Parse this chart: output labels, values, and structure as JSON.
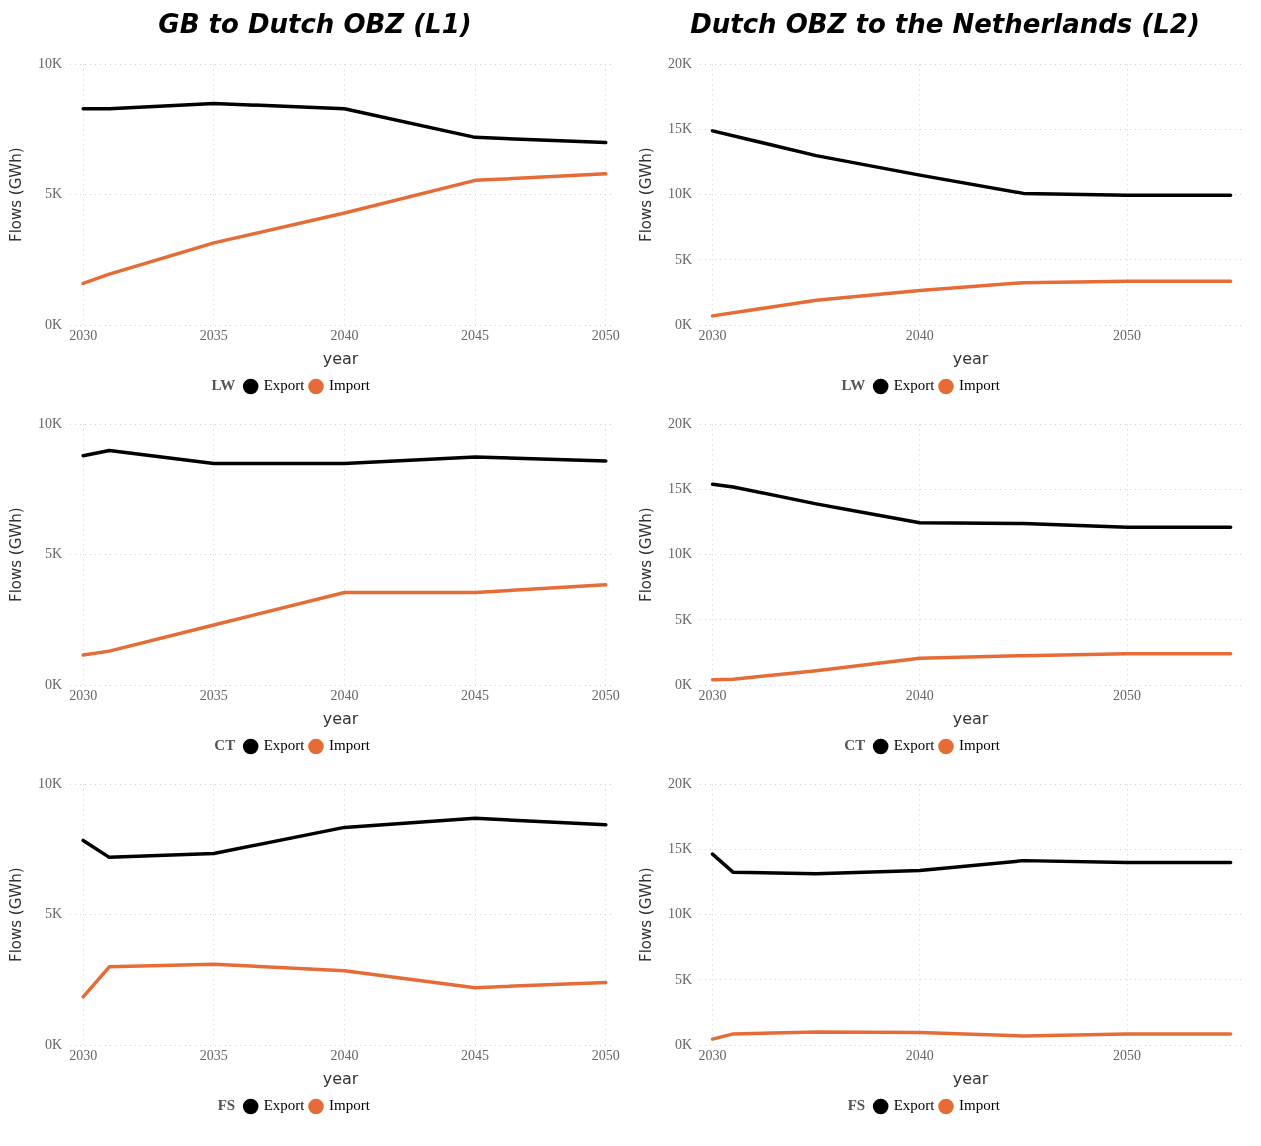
{
  "chart_data": [
    {
      "type": "line",
      "title": "GB to Dutch OBZ (L1)",
      "xlabel": "year",
      "ylabel": "Flows (GWh)",
      "legend_title": "LW",
      "legend": "bottom",
      "grid": true,
      "marker": "none",
      "line_style": "solid",
      "xlim": [
        2029.5,
        2050.2
      ],
      "xticks": [
        2030,
        2035,
        2040,
        2045,
        2050
      ],
      "ylim": [
        0,
        10000
      ],
      "yticks": [
        {
          "value": 0,
          "label": "0K"
        },
        {
          "value": 5000,
          "label": "5K"
        },
        {
          "value": 10000,
          "label": "10K"
        }
      ],
      "series": [
        {
          "name": "Export",
          "color": "#000000",
          "x": [
            2030,
            2031,
            2035,
            2040,
            2045,
            2050
          ],
          "values": [
            8300,
            8300,
            8500,
            8300,
            7200,
            7000
          ]
        },
        {
          "name": "Import",
          "color": "#e66c37",
          "x": [
            2030,
            2031,
            2035,
            2040,
            2045,
            2050
          ],
          "values": [
            1600,
            1950,
            3150,
            4300,
            5550,
            5800
          ]
        }
      ]
    },
    {
      "type": "line",
      "title": "Dutch OBZ to the Netherlands (L2)",
      "xlabel": "year",
      "ylabel": "Flows (GWh)",
      "legend_title": "LW",
      "legend": "bottom",
      "grid": true,
      "marker": "none",
      "line_style": "solid",
      "xlim": [
        2029.4,
        2055.5
      ],
      "xticks": [
        2030,
        2040,
        2050
      ],
      "ylim": [
        0,
        20000
      ],
      "yticks": [
        {
          "value": 0,
          "label": "0K"
        },
        {
          "value": 5000,
          "label": "5K"
        },
        {
          "value": 10000,
          "label": "10K"
        },
        {
          "value": 15000,
          "label": "15K"
        },
        {
          "value": 20000,
          "label": "20K"
        }
      ],
      "series": [
        {
          "name": "Export",
          "color": "#000000",
          "x": [
            2030,
            2035,
            2040,
            2045,
            2050,
            2055
          ],
          "values": [
            14900,
            13000,
            11500,
            10100,
            9950,
            9950
          ]
        },
        {
          "name": "Import",
          "color": "#e66c37",
          "x": [
            2030,
            2035,
            2040,
            2045,
            2050,
            2055
          ],
          "values": [
            700,
            1900,
            2650,
            3250,
            3350,
            3350
          ]
        }
      ]
    },
    {
      "type": "line",
      "xlabel": "year",
      "ylabel": "Flows (GWh)",
      "legend_title": "CT",
      "legend": "bottom",
      "grid": true,
      "marker": "none",
      "line_style": "solid",
      "xlim": [
        2029.5,
        2050.2
      ],
      "xticks": [
        2030,
        2035,
        2040,
        2045,
        2050
      ],
      "ylim": [
        0,
        10000
      ],
      "yticks": [
        {
          "value": 0,
          "label": "0K"
        },
        {
          "value": 5000,
          "label": "5K"
        },
        {
          "value": 10000,
          "label": "10K"
        }
      ],
      "series": [
        {
          "name": "Export",
          "color": "#000000",
          "x": [
            2030,
            2031,
            2035,
            2040,
            2045,
            2050
          ],
          "values": [
            8800,
            9000,
            8500,
            8500,
            8750,
            8600
          ]
        },
        {
          "name": "Import",
          "color": "#e66c37",
          "x": [
            2030,
            2031,
            2035,
            2040,
            2045,
            2050
          ],
          "values": [
            1150,
            1300,
            2300,
            3550,
            3550,
            3850
          ]
        }
      ]
    },
    {
      "type": "line",
      "xlabel": "year",
      "ylabel": "Flows (GWh)",
      "legend_title": "CT",
      "legend": "bottom",
      "grid": true,
      "marker": "none",
      "line_style": "solid",
      "xlim": [
        2029.4,
        2055.5
      ],
      "xticks": [
        2030,
        2040,
        2050
      ],
      "ylim": [
        0,
        20000
      ],
      "yticks": [
        {
          "value": 0,
          "label": "0K"
        },
        {
          "value": 5000,
          "label": "5K"
        },
        {
          "value": 10000,
          "label": "10K"
        },
        {
          "value": 15000,
          "label": "15K"
        },
        {
          "value": 20000,
          "label": "20K"
        }
      ],
      "series": [
        {
          "name": "Export",
          "color": "#000000",
          "x": [
            2030,
            2031,
            2035,
            2040,
            2045,
            2050,
            2055
          ],
          "values": [
            15400,
            15200,
            13900,
            12450,
            12400,
            12100,
            12100
          ]
        },
        {
          "name": "Import",
          "color": "#e66c37",
          "x": [
            2030,
            2031,
            2035,
            2040,
            2045,
            2050,
            2055
          ],
          "values": [
            400,
            450,
            1100,
            2050,
            2250,
            2400,
            2400
          ]
        }
      ]
    },
    {
      "type": "line",
      "xlabel": "year",
      "ylabel": "Flows (GWh)",
      "legend_title": "FS",
      "legend": "bottom",
      "grid": true,
      "marker": "none",
      "line_style": "solid",
      "xlim": [
        2029.5,
        2050.2
      ],
      "xticks": [
        2030,
        2035,
        2040,
        2045,
        2050
      ],
      "ylim": [
        0,
        10000
      ],
      "yticks": [
        {
          "value": 0,
          "label": "0K"
        },
        {
          "value": 5000,
          "label": "5K"
        },
        {
          "value": 10000,
          "label": "10K"
        }
      ],
      "series": [
        {
          "name": "Export",
          "color": "#000000",
          "x": [
            2030,
            2031,
            2035,
            2040,
            2045,
            2050
          ],
          "values": [
            7850,
            7200,
            7350,
            8350,
            8700,
            8450
          ]
        },
        {
          "name": "Import",
          "color": "#e66c37",
          "x": [
            2030,
            2031,
            2035,
            2040,
            2045,
            2050
          ],
          "values": [
            1850,
            3000,
            3100,
            2850,
            2200,
            2400
          ]
        }
      ]
    },
    {
      "type": "line",
      "xlabel": "year",
      "ylabel": "Flows (GWh)",
      "legend_title": "FS",
      "legend": "bottom",
      "grid": true,
      "marker": "none",
      "line_style": "solid",
      "xlim": [
        2029.4,
        2055.5
      ],
      "xticks": [
        2030,
        2040,
        2050
      ],
      "ylim": [
        0,
        20000
      ],
      "yticks": [
        {
          "value": 0,
          "label": "0K"
        },
        {
          "value": 5000,
          "label": "5K"
        },
        {
          "value": 10000,
          "label": "10K"
        },
        {
          "value": 15000,
          "label": "15K"
        },
        {
          "value": 20000,
          "label": "20K"
        }
      ],
      "series": [
        {
          "name": "Export",
          "color": "#000000",
          "x": [
            2030,
            2031,
            2035,
            2040,
            2045,
            2050,
            2055
          ],
          "values": [
            14650,
            13250,
            13150,
            13400,
            14150,
            14000,
            14000
          ]
        },
        {
          "name": "Import",
          "color": "#e66c37",
          "x": [
            2030,
            2031,
            2035,
            2040,
            2045,
            2050,
            2055
          ],
          "values": [
            450,
            850,
            1000,
            950,
            700,
            850,
            850
          ]
        }
      ]
    }
  ]
}
